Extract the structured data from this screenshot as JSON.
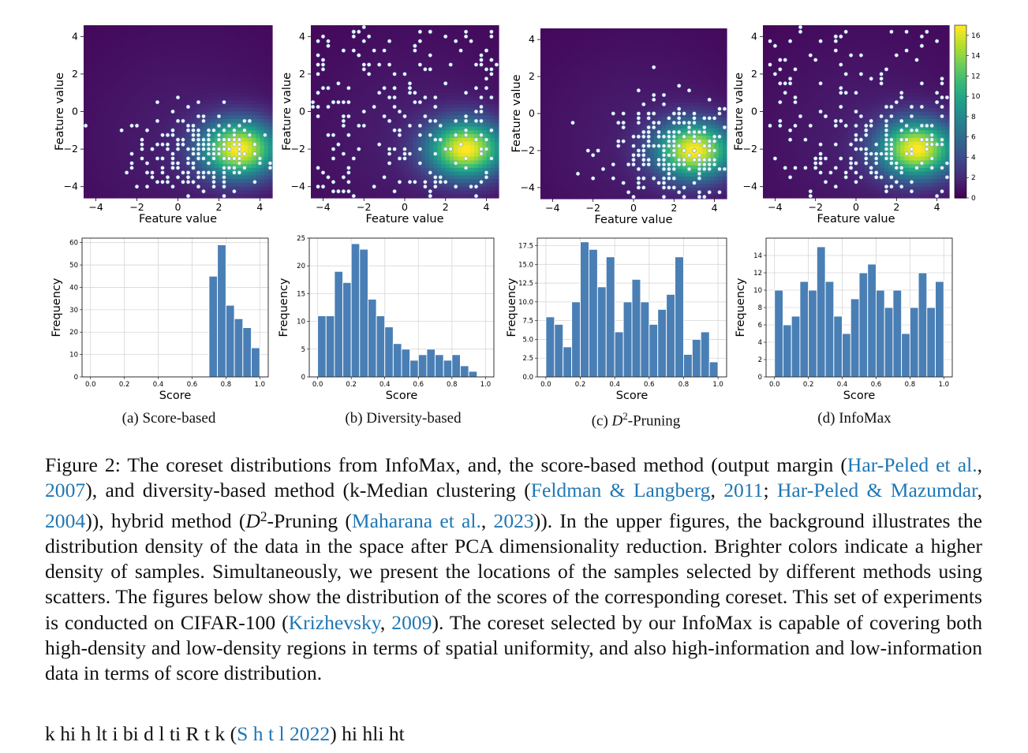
{
  "figure": {
    "panels": [
      {
        "id": "a",
        "label": "(a) Score-based"
      },
      {
        "id": "b",
        "label": "(b) Diversity-based"
      },
      {
        "id": "c",
        "label_prefix": "(c) ",
        "label_var": "D",
        "label_sup": "2",
        "label_suffix": "-Pruning"
      },
      {
        "id": "d",
        "label": "(d) InfoMax"
      }
    ],
    "colormap": "viridis",
    "colorbar_ticks": [
      "0",
      "2",
      "4",
      "6",
      "8",
      "10",
      "12",
      "14",
      "16"
    ]
  },
  "chart_data": [
    {
      "type": "heatmap",
      "panel": "a",
      "xlabel": "Feature value",
      "ylabel": "Feature value",
      "xlim": [
        -4.6,
        4.6
      ],
      "ylim": [
        -4.6,
        4.6
      ],
      "x_ticks": [
        "−4",
        "−2",
        "0",
        "2",
        "4"
      ],
      "y_ticks": [
        "−4",
        "−2",
        "0",
        "2",
        "4"
      ],
      "density_peak": [
        3.0,
        -2.0
      ],
      "density_max": 16,
      "scatter": {
        "center": [
          1.0,
          -2.2
        ],
        "spread": [
          1.6,
          1.2
        ],
        "count": 220
      }
    },
    {
      "type": "heatmap",
      "panel": "b",
      "xlabel": "Feature value",
      "ylabel": "Feature value",
      "xlim": [
        -4.6,
        4.6
      ],
      "ylim": [
        -4.6,
        4.6
      ],
      "x_ticks": [
        "−4",
        "−2",
        "0",
        "2",
        "4"
      ],
      "y_ticks": [
        "−4",
        "−2",
        "0",
        "2",
        "4"
      ],
      "density_peak": [
        3.0,
        -2.0
      ],
      "density_max": 16,
      "scatter": {
        "mode": "uniform",
        "count": 230
      }
    },
    {
      "type": "heatmap",
      "panel": "c",
      "xlabel": "Feature value",
      "ylabel": "Feature value",
      "xlim": [
        -4.6,
        4.6
      ],
      "ylim": [
        -4.6,
        4.6
      ],
      "x_ticks": [
        "−4",
        "−2",
        "0",
        "2",
        "4"
      ],
      "y_ticks": [
        "−4",
        "−2",
        "0",
        "2",
        "4"
      ],
      "density_peak": [
        3.0,
        -2.0
      ],
      "density_max": 16,
      "scatter": {
        "center": [
          1.8,
          -2.0
        ],
        "spread": [
          1.7,
          1.4
        ],
        "count": 240
      }
    },
    {
      "type": "heatmap",
      "panel": "d",
      "xlabel": "Feature value",
      "ylabel": "Feature value",
      "xlim": [
        -4.6,
        4.6
      ],
      "ylim": [
        -4.6,
        4.6
      ],
      "x_ticks": [
        "−4",
        "−2",
        "0",
        "2",
        "4"
      ],
      "y_ticks": [
        "−4",
        "−2",
        "0",
        "2",
        "4"
      ],
      "density_peak": [
        3.0,
        -2.0
      ],
      "density_max": 16,
      "scatter": {
        "mode": "mixed",
        "count": 240
      }
    },
    {
      "type": "bar",
      "panel": "a",
      "xlabel": "Score",
      "ylabel": "Frequency",
      "ylim": [
        0,
        62
      ],
      "bin_start": 0.7,
      "bin_width": 0.05,
      "values": [
        45,
        59,
        32,
        26,
        22,
        13
      ],
      "x_ticks": [
        "0.0",
        "0.2",
        "0.4",
        "0.6",
        "0.8",
        "1.0"
      ],
      "y_ticks": [
        "0",
        "10",
        "20",
        "30",
        "40",
        "50",
        "60"
      ]
    },
    {
      "type": "bar",
      "panel": "b",
      "xlabel": "Score",
      "ylabel": "Frequency",
      "ylim": [
        0,
        25
      ],
      "bin_start": 0.0,
      "bin_width": 0.05,
      "values": [
        11,
        11,
        19,
        17,
        24,
        23,
        14,
        11,
        9,
        6,
        5,
        3,
        4,
        5,
        4,
        3,
        4,
        2,
        1
      ],
      "x_ticks": [
        "0.0",
        "0.2",
        "0.4",
        "0.6",
        "0.8",
        "1.0"
      ],
      "y_ticks": [
        "0",
        "5",
        "10",
        "15",
        "20",
        "25"
      ]
    },
    {
      "type": "bar",
      "panel": "c",
      "xlabel": "Score",
      "ylabel": "Frequency",
      "ylim": [
        0,
        18.5
      ],
      "bin_start": 0.0,
      "bin_width": 0.05,
      "values": [
        8,
        7,
        4,
        10,
        18,
        17,
        12,
        16,
        6,
        10,
        13,
        10,
        7,
        9,
        11,
        16,
        3,
        5,
        6,
        2
      ],
      "x_ticks": [
        "0.0",
        "0.2",
        "0.4",
        "0.6",
        "0.8",
        "1.0"
      ],
      "y_ticks": [
        "0.0",
        "2.5",
        "5.0",
        "7.5",
        "10.0",
        "12.5",
        "15.0",
        "17.5"
      ]
    },
    {
      "type": "bar",
      "panel": "d",
      "xlabel": "Score",
      "ylabel": "Frequency",
      "ylim": [
        0,
        16
      ],
      "bin_start": 0.0,
      "bin_width": 0.05,
      "values": [
        10,
        6,
        7,
        11,
        10,
        15,
        11,
        7,
        5,
        9,
        12,
        13,
        10,
        8,
        10,
        5,
        8,
        12,
        8,
        11
      ],
      "x_ticks": [
        "0.0",
        "0.2",
        "0.4",
        "0.6",
        "0.8",
        "1.0"
      ],
      "y_ticks": [
        "0",
        "2",
        "4",
        "6",
        "8",
        "10",
        "12",
        "14"
      ]
    }
  ],
  "caption": {
    "s1": "Figure 2:  The coreset distributions from InfoMax, and, the score-based method (output margin (",
    "c1a": "Har-Peled et al.",
    "c1sep": ", ",
    "c1b": "2007",
    "s2": "), and diversity-based method (k-Median clustering (",
    "c2a": "Feldman & Langberg",
    "c2sep": ", ",
    "c2b": "2011",
    "s3": "; ",
    "c3a": "Har-Peled & Mazumdar",
    "c3sep": ", ",
    "c3b": "2004",
    "s4a": ")), hybrid method (",
    "s4var": "D",
    "s4sup": "2",
    "s4b": "-Pruning (",
    "c4a": "Maharana et al.",
    "c4sep": ", ",
    "c4b": "2023",
    "s5": ")). In the upper figures, the background illustrates the distribution density of the data in the space after PCA dimensionality reduction. Brighter colors indicate a higher density of samples. Simultaneously, we present the locations of the samples selected by different methods using scatters. The figures below show the distribution of the scores of the corresponding coreset. This set of experiments is conducted on CIFAR-100 (",
    "c5a": "Krizhevsky",
    "c5sep": ", ",
    "c5b": "2009",
    "s6": "). The coreset selected by our InfoMax is capable of covering both high-density and low-density regions in terms of spatial uniformity, and also high-information and low-information data in terms of score distribution."
  },
  "cut_line": {
    "text1": "k                              hi h     lt i  bi   d   l ti     R    t    k  (",
    "cite": "S    h        t  l   2022",
    "text2": ") hi hli ht"
  }
}
